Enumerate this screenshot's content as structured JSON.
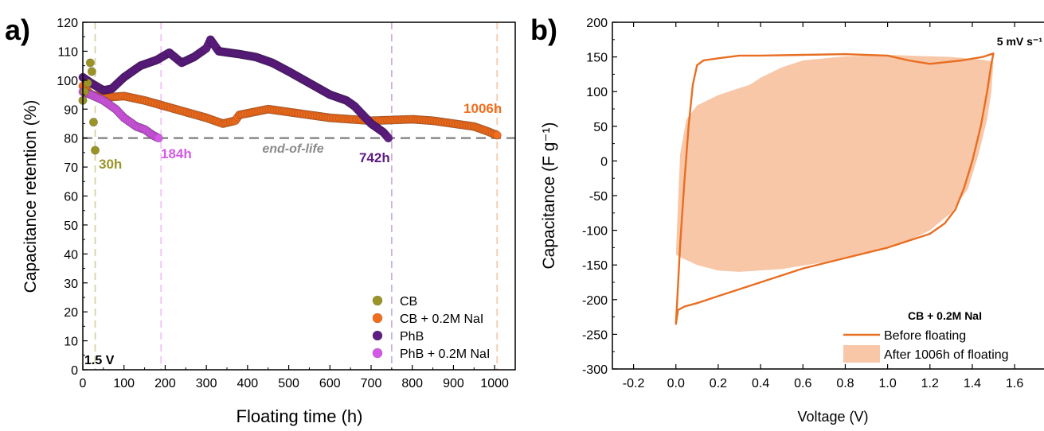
{
  "colors": {
    "cb": "#9a9428",
    "cb_nai": "#f26d1e",
    "phb": "#5e1d83",
    "phb_nai": "#d558e6",
    "eol": "#8a8a8a",
    "fill_after": "#f8c7a8",
    "line_before": "#e86e22"
  },
  "chart_data": [
    {
      "type": "scatter",
      "panel_label": "a)",
      "xlabel": "Floating time (h)",
      "ylabel": "Capacitance retention (%)",
      "xlim": [
        0,
        1050
      ],
      "ylim": [
        0,
        120
      ],
      "xticks": [
        "0",
        "100",
        "200",
        "300",
        "400",
        "500",
        "600",
        "700",
        "800",
        "900",
        "1000"
      ],
      "yticks": [
        "0",
        "10",
        "20",
        "30",
        "40",
        "50",
        "60",
        "70",
        "80",
        "90",
        "100",
        "110",
        "120"
      ],
      "grid": false,
      "legend_position": "bottom-right",
      "eol_label": "end-of-life",
      "eol_value": 80,
      "voltage_label": "1.5 V",
      "series": [
        {
          "name": "CB",
          "color_key": "cb",
          "end_label": "30h",
          "end_x": 30,
          "points": [
            [
              0,
              93
            ],
            [
              5,
              96
            ],
            [
              12,
              99
            ],
            [
              18,
              106
            ],
            [
              22,
              103
            ],
            [
              26,
              85.5
            ],
            [
              30,
              75.8
            ]
          ]
        },
        {
          "name": "CB + 0.2M NaI",
          "color_key": "cb_nai",
          "end_label": "1006h",
          "end_x": 1006,
          "curve": [
            [
              0,
              98
            ],
            [
              20,
              95
            ],
            [
              50,
              94
            ],
            [
              100,
              94.5
            ],
            [
              150,
              93
            ],
            [
              200,
              91
            ],
            [
              250,
              89
            ],
            [
              300,
              87
            ],
            [
              340,
              85
            ],
            [
              370,
              86
            ],
            [
              380,
              88
            ],
            [
              450,
              90
            ],
            [
              500,
              89
            ],
            [
              550,
              88
            ],
            [
              600,
              87
            ],
            [
              700,
              86
            ],
            [
              800,
              86.5
            ],
            [
              850,
              86
            ],
            [
              900,
              85
            ],
            [
              950,
              84
            ],
            [
              980,
              82.5
            ],
            [
              1006,
              81
            ]
          ]
        },
        {
          "name": "PhB",
          "color_key": "phb",
          "end_label": "742h",
          "end_x": 750,
          "curve": [
            [
              0,
              101
            ],
            [
              20,
              99
            ],
            [
              50,
              96.5
            ],
            [
              70,
              97
            ],
            [
              100,
              101
            ],
            [
              140,
              105
            ],
            [
              180,
              107
            ],
            [
              210,
              109.5
            ],
            [
              240,
              106
            ],
            [
              270,
              108
            ],
            [
              300,
              111
            ],
            [
              310,
              114
            ],
            [
              330,
              110
            ],
            [
              380,
              109
            ],
            [
              420,
              108
            ],
            [
              460,
              106
            ],
            [
              500,
              103
            ],
            [
              550,
              99
            ],
            [
              600,
              95
            ],
            [
              640,
              93
            ],
            [
              660,
              91
            ],
            [
              700,
              85
            ],
            [
              730,
              82
            ],
            [
              742,
              80
            ]
          ]
        },
        {
          "name": "PhB + 0.2M NaI",
          "color_key": "phb_nai",
          "end_label": "184h",
          "end_x": 190,
          "curve": [
            [
              0,
              96
            ],
            [
              20,
              95
            ],
            [
              50,
              93
            ],
            [
              80,
              90
            ],
            [
              100,
              87
            ],
            [
              130,
              84
            ],
            [
              150,
              83
            ],
            [
              170,
              81
            ],
            [
              184,
              80
            ]
          ]
        }
      ]
    },
    {
      "type": "area",
      "panel_label": "b)",
      "xlabel": "Voltage (V)",
      "ylabel": "Capacitance (F g⁻¹)",
      "xlim": [
        -0.3,
        1.75
      ],
      "ylim": [
        -300,
        200
      ],
      "xticks": [
        "-0.2",
        "0.0",
        "0.2",
        "0.4",
        "0.6",
        "0.8",
        "1.0",
        "1.2",
        "1.4",
        "1.6"
      ],
      "yticks": [
        "-300",
        "-250",
        "-200",
        "-150",
        "-100",
        "-50",
        "0",
        "50",
        "100",
        "150",
        "200"
      ],
      "grid": false,
      "legend_position": "bottom-right",
      "rate_label": "5 mV s⁻¹",
      "legend_title": "CB + 0.2M NaI",
      "series": [
        {
          "name": "Before floating",
          "color_key": "line_before",
          "style": "line",
          "points": [
            [
              0,
              -235
            ],
            [
              0.01,
              -215
            ],
            [
              0.04,
              -210
            ],
            [
              0.1,
              -205
            ],
            [
              0.2,
              -195
            ],
            [
              0.4,
              -175
            ],
            [
              0.6,
              -155
            ],
            [
              0.8,
              -140
            ],
            [
              1.0,
              -125
            ],
            [
              1.1,
              -115
            ],
            [
              1.2,
              -105
            ],
            [
              1.27,
              -90
            ],
            [
              1.32,
              -70
            ],
            [
              1.36,
              -40
            ],
            [
              1.4,
              0
            ],
            [
              1.44,
              50
            ],
            [
              1.47,
              100
            ],
            [
              1.49,
              140
            ],
            [
              1.5,
              155
            ],
            [
              1.45,
              150
            ],
            [
              1.35,
              145
            ],
            [
              1.2,
              140
            ],
            [
              1.1,
              145
            ],
            [
              1.0,
              152
            ],
            [
              0.8,
              154
            ],
            [
              0.6,
              153
            ],
            [
              0.4,
              152
            ],
            [
              0.3,
              152
            ],
            [
              0.2,
              148
            ],
            [
              0.13,
              145
            ],
            [
              0.1,
              138
            ],
            [
              0.08,
              110
            ],
            [
              0.06,
              50
            ],
            [
              0.04,
              -30
            ],
            [
              0.02,
              -120
            ],
            [
              0.01,
              -180
            ],
            [
              0,
              -235
            ]
          ]
        },
        {
          "name": "After 1006h of floating",
          "color_key": "fill_after",
          "style": "fill",
          "points": [
            [
              0,
              -135
            ],
            [
              0.03,
              -140
            ],
            [
              0.1,
              -150
            ],
            [
              0.2,
              -158
            ],
            [
              0.3,
              -160
            ],
            [
              0.5,
              -156
            ],
            [
              0.7,
              -146
            ],
            [
              0.9,
              -133
            ],
            [
              1.0,
              -125
            ],
            [
              1.1,
              -115
            ],
            [
              1.2,
              -100
            ],
            [
              1.3,
              -75
            ],
            [
              1.38,
              -40
            ],
            [
              1.43,
              10
            ],
            [
              1.47,
              60
            ],
            [
              1.49,
              100
            ],
            [
              1.5,
              143
            ],
            [
              1.45,
              146
            ],
            [
              1.3,
              150
            ],
            [
              1.1,
              152
            ],
            [
              1.0,
              153
            ],
            [
              0.9,
              152
            ],
            [
              0.8,
              151
            ],
            [
              0.6,
              145
            ],
            [
              0.5,
              135
            ],
            [
              0.4,
              120
            ],
            [
              0.35,
              110
            ],
            [
              0.3,
              105
            ],
            [
              0.2,
              95
            ],
            [
              0.1,
              80
            ],
            [
              0.05,
              60
            ],
            [
              0.02,
              10
            ],
            [
              0.01,
              -60
            ],
            [
              0,
              -135
            ]
          ]
        }
      ]
    }
  ]
}
